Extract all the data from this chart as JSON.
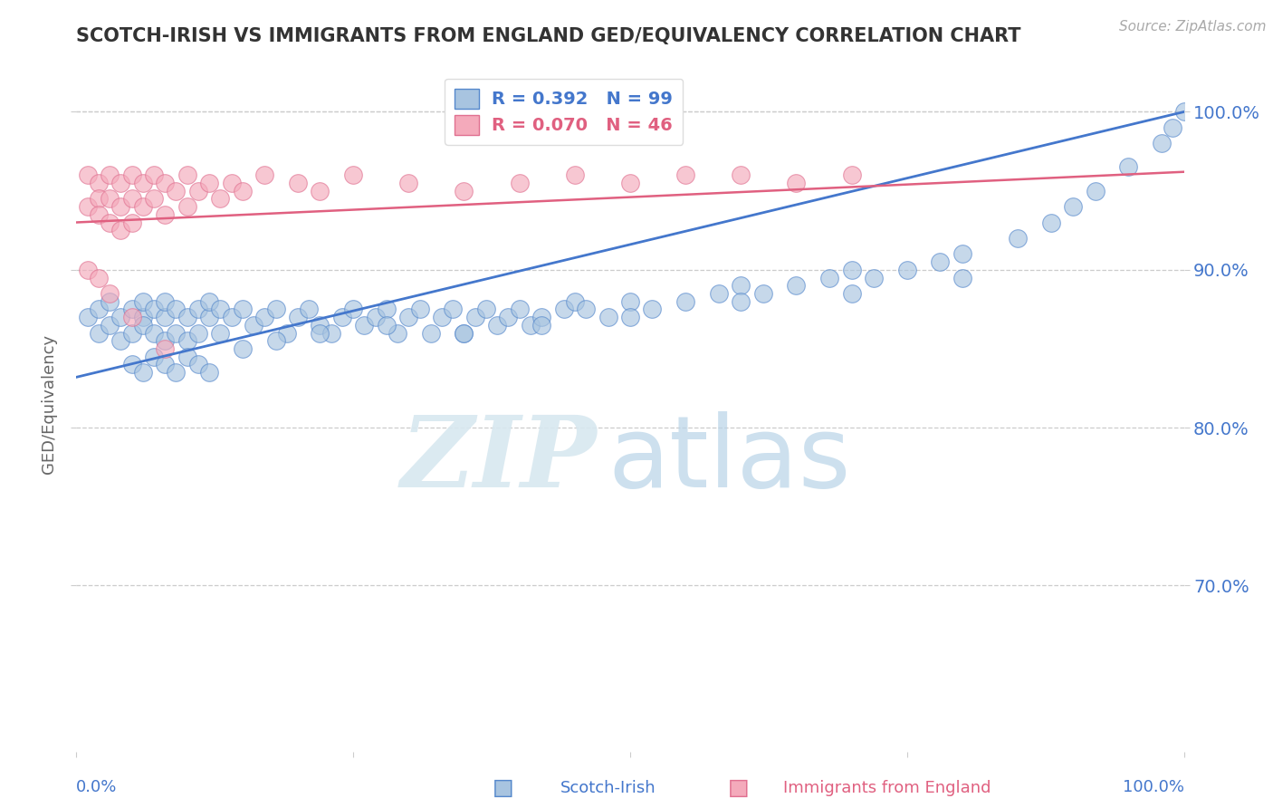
{
  "title": "SCOTCH-IRISH VS IMMIGRANTS FROM ENGLAND GED/EQUIVALENCY CORRELATION CHART",
  "source": "Source: ZipAtlas.com",
  "ylabel": "GED/Equivalency",
  "xlim": [
    0.0,
    1.0
  ],
  "ylim": [
    0.595,
    1.035
  ],
  "blue_R": 0.392,
  "blue_N": 99,
  "pink_R": 0.07,
  "pink_N": 46,
  "blue_color": "#A8C4E0",
  "pink_color": "#F4AABB",
  "blue_edge_color": "#5588CC",
  "pink_edge_color": "#E07090",
  "blue_line_color": "#4477CC",
  "pink_line_color": "#E06080",
  "title_color": "#333333",
  "axis_label_color": "#4477CC",
  "source_color": "#AAAAAA",
  "grid_color": "#CCCCCC",
  "blue_line_start_y": 0.832,
  "blue_line_end_y": 1.0,
  "pink_line_start_y": 0.93,
  "pink_line_end_y": 0.962,
  "blue_scatter_x": [
    0.01,
    0.02,
    0.02,
    0.03,
    0.03,
    0.04,
    0.04,
    0.05,
    0.05,
    0.06,
    0.06,
    0.06,
    0.07,
    0.07,
    0.08,
    0.08,
    0.08,
    0.09,
    0.09,
    0.1,
    0.1,
    0.11,
    0.11,
    0.12,
    0.12,
    0.13,
    0.13,
    0.14,
    0.15,
    0.16,
    0.17,
    0.18,
    0.19,
    0.2,
    0.21,
    0.22,
    0.23,
    0.24,
    0.25,
    0.26,
    0.27,
    0.28,
    0.29,
    0.3,
    0.31,
    0.32,
    0.33,
    0.34,
    0.35,
    0.36,
    0.37,
    0.38,
    0.39,
    0.4,
    0.41,
    0.42,
    0.44,
    0.45,
    0.46,
    0.48,
    0.5,
    0.52,
    0.55,
    0.58,
    0.6,
    0.62,
    0.65,
    0.68,
    0.7,
    0.72,
    0.75,
    0.78,
    0.8,
    0.85,
    0.88,
    0.9,
    0.92,
    0.95,
    0.98,
    0.99,
    1.0,
    0.05,
    0.06,
    0.07,
    0.08,
    0.09,
    0.1,
    0.11,
    0.12,
    0.15,
    0.18,
    0.22,
    0.28,
    0.35,
    0.42,
    0.5,
    0.6,
    0.7,
    0.8
  ],
  "blue_scatter_y": [
    0.87,
    0.875,
    0.86,
    0.88,
    0.865,
    0.87,
    0.855,
    0.875,
    0.86,
    0.87,
    0.88,
    0.865,
    0.875,
    0.86,
    0.87,
    0.88,
    0.855,
    0.875,
    0.86,
    0.87,
    0.855,
    0.875,
    0.86,
    0.87,
    0.88,
    0.875,
    0.86,
    0.87,
    0.875,
    0.865,
    0.87,
    0.875,
    0.86,
    0.87,
    0.875,
    0.865,
    0.86,
    0.87,
    0.875,
    0.865,
    0.87,
    0.875,
    0.86,
    0.87,
    0.875,
    0.86,
    0.87,
    0.875,
    0.86,
    0.87,
    0.875,
    0.865,
    0.87,
    0.875,
    0.865,
    0.87,
    0.875,
    0.88,
    0.875,
    0.87,
    0.88,
    0.875,
    0.88,
    0.885,
    0.89,
    0.885,
    0.89,
    0.895,
    0.9,
    0.895,
    0.9,
    0.905,
    0.91,
    0.92,
    0.93,
    0.94,
    0.95,
    0.965,
    0.98,
    0.99,
    1.0,
    0.84,
    0.835,
    0.845,
    0.84,
    0.835,
    0.845,
    0.84,
    0.835,
    0.85,
    0.855,
    0.86,
    0.865,
    0.86,
    0.865,
    0.87,
    0.88,
    0.885,
    0.895
  ],
  "pink_scatter_x": [
    0.01,
    0.01,
    0.02,
    0.02,
    0.02,
    0.03,
    0.03,
    0.03,
    0.04,
    0.04,
    0.04,
    0.05,
    0.05,
    0.05,
    0.06,
    0.06,
    0.07,
    0.07,
    0.08,
    0.08,
    0.09,
    0.1,
    0.1,
    0.11,
    0.12,
    0.13,
    0.14,
    0.15,
    0.17,
    0.2,
    0.22,
    0.25,
    0.3,
    0.35,
    0.4,
    0.45,
    0.5,
    0.55,
    0.6,
    0.65,
    0.7,
    0.01,
    0.02,
    0.03,
    0.05,
    0.08
  ],
  "pink_scatter_y": [
    0.96,
    0.94,
    0.955,
    0.945,
    0.935,
    0.96,
    0.945,
    0.93,
    0.955,
    0.94,
    0.925,
    0.96,
    0.945,
    0.93,
    0.955,
    0.94,
    0.96,
    0.945,
    0.955,
    0.935,
    0.95,
    0.96,
    0.94,
    0.95,
    0.955,
    0.945,
    0.955,
    0.95,
    0.96,
    0.955,
    0.95,
    0.96,
    0.955,
    0.95,
    0.955,
    0.96,
    0.955,
    0.96,
    0.96,
    0.955,
    0.96,
    0.9,
    0.895,
    0.885,
    0.87,
    0.85
  ],
  "legend_box_color": "#FFFFFF",
  "legend_border_color": "#DDDDDD"
}
